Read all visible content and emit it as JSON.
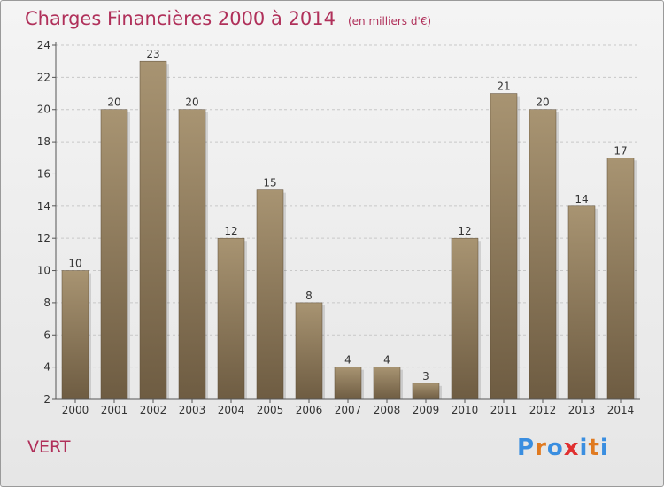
{
  "title": "Charges Financières 2000 à 2014",
  "unit_note": "(en milliers d'€)",
  "commune": "VERT",
  "logo": {
    "text": "Proxiti",
    "letters": [
      "P",
      "r",
      "o",
      "x",
      "i",
      "t",
      "i"
    ],
    "colors": [
      "#3a8ee0",
      "#e07a20",
      "#3a8ee0",
      "#e03030",
      "#3a8ee0",
      "#e07a20",
      "#3a8ee0"
    ]
  },
  "colors": {
    "title": "#b0305a",
    "bar_top": "#a89472",
    "bar_bottom": "#6e5c42",
    "grid": "#c8c8c8",
    "axis": "#555555"
  },
  "chart_data": {
    "type": "bar",
    "title": "Charges Financières 2000 à 2014",
    "subtitle": "(en milliers d'€)",
    "categories": [
      "2000",
      "2001",
      "2002",
      "2003",
      "2004",
      "2005",
      "2006",
      "2007",
      "2008",
      "2009",
      "2010",
      "2011",
      "2012",
      "2013",
      "2014"
    ],
    "values": [
      10,
      20,
      23,
      20,
      12,
      15,
      8,
      4,
      4,
      3,
      12,
      21,
      20,
      14,
      17
    ],
    "ylim": [
      2,
      24
    ],
    "yticks": [
      2,
      4,
      6,
      8,
      10,
      12,
      14,
      16,
      18,
      20,
      22,
      24
    ],
    "grid": true,
    "xlabel": "",
    "ylabel": ""
  }
}
